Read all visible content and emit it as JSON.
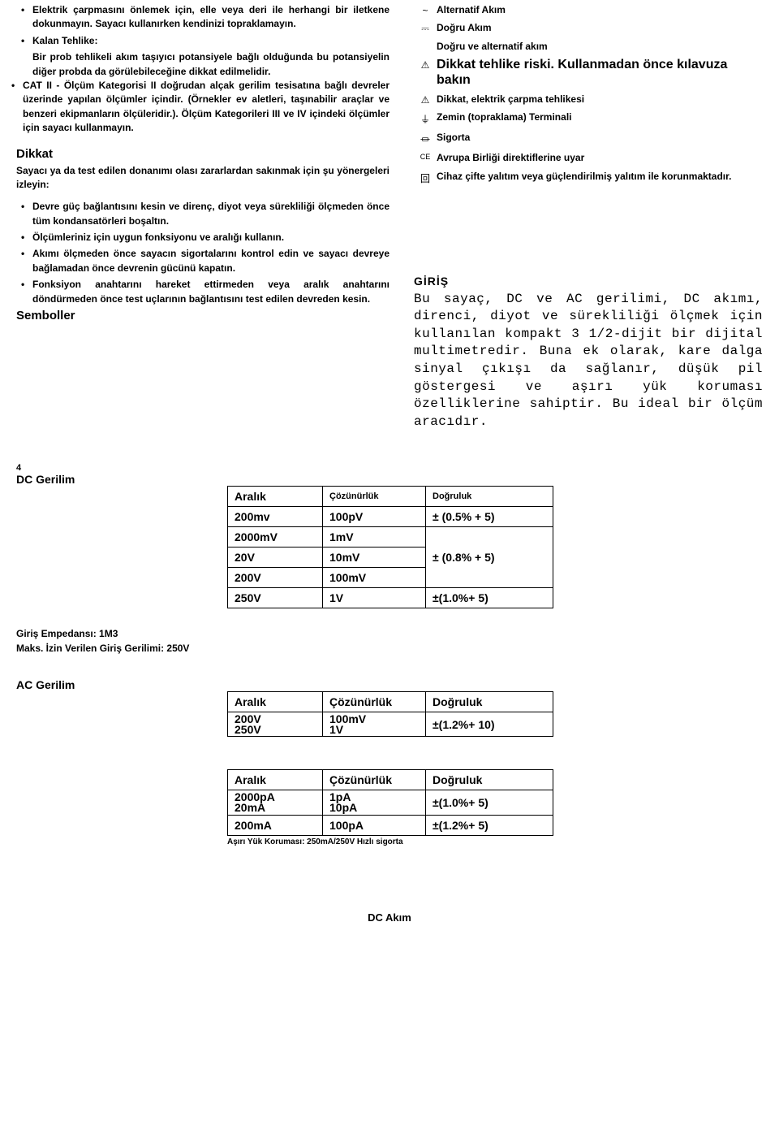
{
  "left": {
    "bullets_top": [
      "Elektrik çarpmasını önlemek için, elle veya deri ile herhangi bir iletkene dokunmayın. Sayacı kullanırken kendinizi topraklamayın.",
      "Kalan Tehlike:"
    ],
    "residual_text": "Bir prob tehlikeli akım taşıyıcı potansiyele bağlı olduğunda bu potansiyelin diğer probda da görülebileceğine dikkat edilmelidir.",
    "cat2": "CAT II - Ölçüm Kategorisi II doğrudan alçak gerilim tesisatına bağlı devreler üzerinde yapılan ölçümler içindir. (Örnekler ev aletleri, taşınabilir araçlar ve benzeri ekipmanların ölçüleridir.). Ölçüm Kategorileri III ve IV içindeki ölçümler için sayacı kullanmayın.",
    "dikkat_h": "Dikkat",
    "dikkat_intro": "Sayacı ya da test edilen donanımı olası zararlardan sakınmak için şu yönergeleri izleyin:",
    "dikkat_list": [
      "Devre güç bağlantısını kesin ve direnç, diyot veya sürekliliği ölçmeden önce tüm kondansatörleri boşaltın.",
      "Ölçümleriniz için uygun fonksiyonu ve aralığı kullanın.",
      "Akımı ölçmeden önce sayacın sigortalarını kontrol edin ve sayacı devreye bağlamadan önce devrenin gücünü kapatın.",
      "Fonksiyon anahtarını hareket ettirmeden veya aralık anahtarını döndürmeden önce test uçlarının bağlantısını test edilen devreden kesin."
    ],
    "semboller_h": "Semboller"
  },
  "symbols": [
    {
      "icon": "~",
      "text": "Alternatif Akım"
    },
    {
      "icon": "⎓",
      "text": "Doğru Akım"
    },
    {
      "icon": "",
      "text": "Doğru ve alternatif akım"
    },
    {
      "icon": "⚠",
      "text": "Dikkat tehlike riski. Kullanmadan önce kılavuza bakın",
      "big": true
    },
    {
      "icon": "⚠",
      "text": "Dikkat, elektrik çarpma tehlikesi"
    },
    {
      "icon": "⏚",
      "text": "Zemin (topraklama) Terminali"
    },
    {
      "icon": "⏛",
      "text": "Sigorta"
    },
    {
      "icon": "CE",
      "text": "Avrupa Birliği direktiflerine uyar"
    },
    {
      "icon": "回",
      "text": "Cihaz çifte yalıtım veya güçlendirilmiş yalıtım ile korunmaktadır."
    }
  ],
  "giris_h": "GİRİŞ",
  "giris_body": "Bu sayaç, DC ve AC gerilimi, DC akımı, direnci, diyot ve sürekliliği ölçmek için kullanılan kompakt 3 1/2-dijit bir dijital multimetredir.  Buna ek olarak, kare dalga sinyal çıkışı da sağlanır, düşük pil göstergesi ve aşırı yük koruması özelliklerine sahiptir. Bu ideal bir ölçüm aracıdır.",
  "page_num": "4",
  "dc_ger_h": "DC Gerilim",
  "dc_ger_table": {
    "headers": [
      "Aralık",
      "Çözünürlük",
      "Doğruluk"
    ],
    "rows": [
      [
        "200mv",
        "100pV",
        "± (0.5% + 5)"
      ],
      [
        "2000mV",
        "1mV",
        ""
      ],
      [
        "20V",
        "10mV",
        "± (0.8% + 5)"
      ],
      [
        "200V",
        "100mV",
        ""
      ],
      [
        "250V",
        "1V",
        "±(1.0%+ 5)"
      ]
    ]
  },
  "note1": "Giriş Empedansı: 1M3",
  "note2": "Maks. İzin Verilen Giriş Gerilimi: 250V",
  "ac_ger_h": "AC Gerilim",
  "ac_ger_table": {
    "headers": [
      "Aralık",
      "Çözünürlük",
      "Doğruluk"
    ],
    "rows": [
      [
        "200V",
        "100mV",
        ""
      ],
      [
        "250V",
        "1V",
        "±(1.2%+ 10)"
      ]
    ]
  },
  "dc_akim_table": {
    "headers": [
      "Aralık",
      "Çözünürlük",
      "Doğruluk"
    ],
    "rows": [
      [
        "2000pA",
        "1pA",
        ""
      ],
      [
        "20mA",
        "10pA",
        "±(1.0%+ 5)"
      ],
      [
        "200mA",
        "100pA",
        "±(1.2%+ 5)"
      ]
    ]
  },
  "overload_note": "Aşırı Yük Koruması: 250mA/250V Hızlı sigorta",
  "dc_akim_h": "DC Akım"
}
